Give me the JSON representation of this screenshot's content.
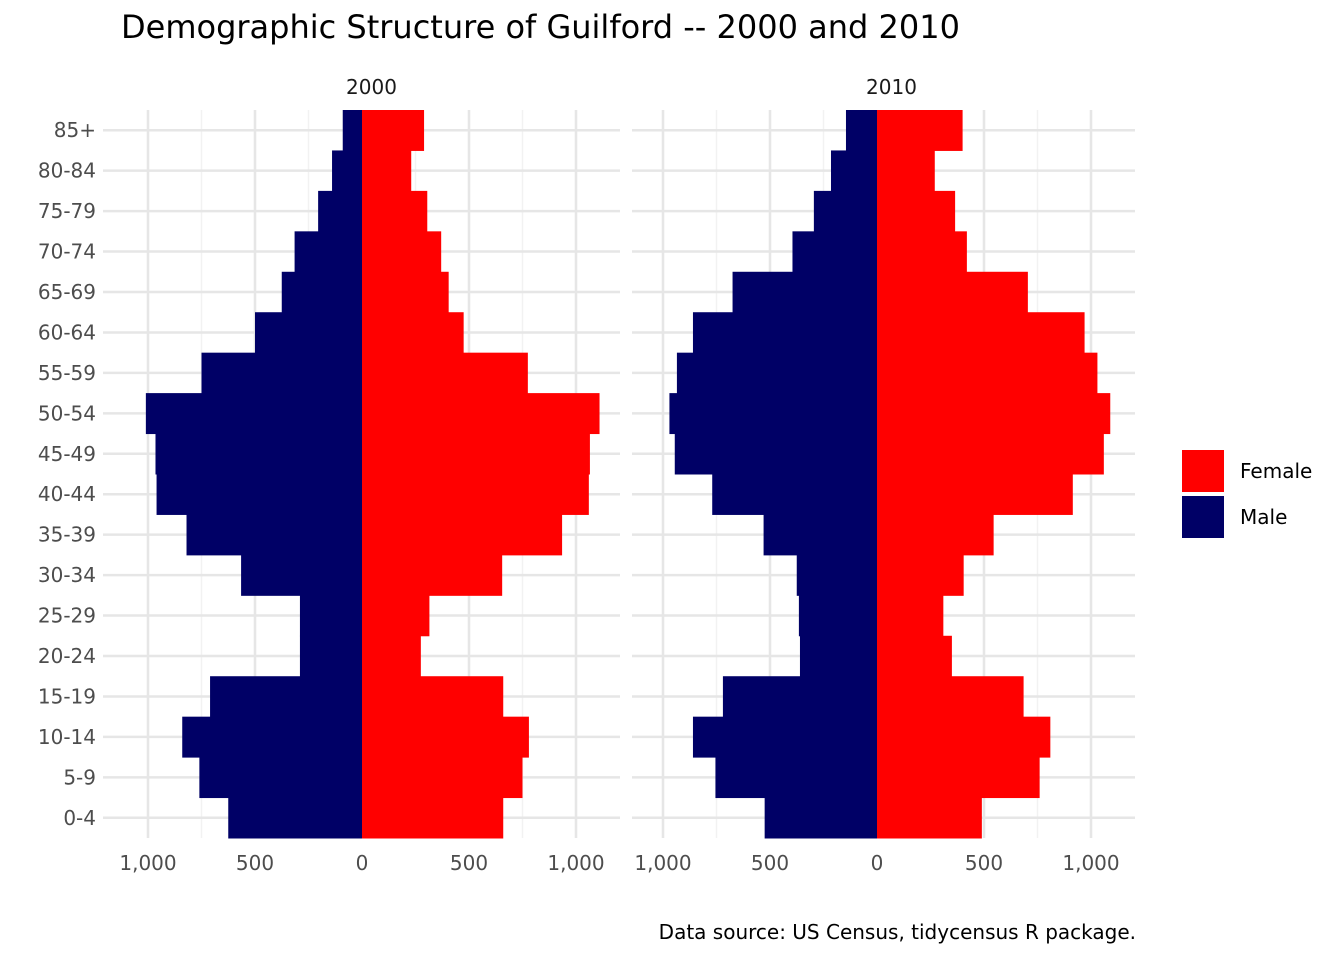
{
  "chart_data": {
    "type": "bar",
    "orientation": "horizontal",
    "title": "Demographic Structure of Guilford -- 2000 and 2010",
    "caption": "Data source: US Census, tidycensus R package.",
    "xlabel": "",
    "ylabel": "",
    "xlim": [
      -1000,
      1000
    ],
    "x_ticks": [
      -1000,
      -500,
      0,
      500,
      1000
    ],
    "x_tick_labels": [
      "1,000",
      "500",
      "0",
      "500",
      "1,000"
    ],
    "grid": true,
    "legend_position": "right",
    "categories": [
      "0-4",
      "5-9",
      "10-14",
      "15-19",
      "20-24",
      "25-29",
      "30-34",
      "35-39",
      "40-44",
      "45-49",
      "50-54",
      "55-59",
      "60-64",
      "65-69",
      "70-74",
      "75-79",
      "80-84",
      "85+"
    ],
    "legend": [
      {
        "name": "Female",
        "color": "#ff0000"
      },
      {
        "name": "Male",
        "color": "#000066"
      }
    ],
    "panels": [
      {
        "title": "2000",
        "series": [
          {
            "name": "Female",
            "color": "#ff0000",
            "values": [
              660,
              750,
              780,
              660,
              275,
              315,
              655,
              935,
              1060,
              1065,
              1110,
              775,
              475,
              405,
              370,
              305,
              230,
              290
            ]
          },
          {
            "name": "Male",
            "color": "#000066",
            "values": [
              625,
              760,
              840,
              710,
              290,
              290,
              565,
              820,
              960,
              965,
              1010,
              750,
              500,
              375,
              315,
              205,
              140,
              90
            ]
          }
        ]
      },
      {
        "title": "2010",
        "series": [
          {
            "name": "Female",
            "color": "#ff0000",
            "values": [
              490,
              760,
              810,
              685,
              350,
              310,
              405,
              545,
              915,
              1060,
              1090,
              1030,
              970,
              705,
              420,
              365,
              270,
              400
            ]
          },
          {
            "name": "Male",
            "color": "#000066",
            "values": [
              525,
              755,
              860,
              720,
              360,
              365,
              375,
              530,
              770,
              945,
              970,
              935,
              860,
              675,
              395,
              295,
              215,
              145
            ]
          }
        ]
      }
    ]
  }
}
